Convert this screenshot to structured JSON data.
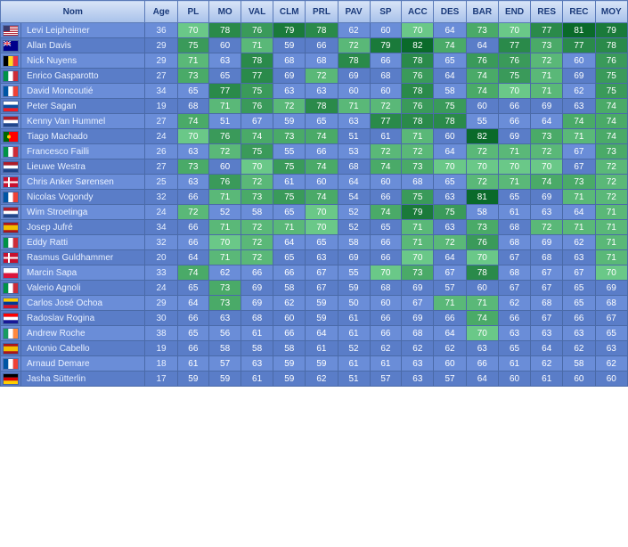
{
  "headers": {
    "nom": "Nom",
    "age": "Age",
    "stats": [
      "PL",
      "MO",
      "VAL",
      "CLM",
      "PRL",
      "PAV",
      "SP",
      "ACC",
      "DES",
      "BAR",
      "END",
      "RES",
      "REC",
      "MOY"
    ]
  },
  "stat_colors": {
    "ranges": [
      {
        "min": 80,
        "bg": "#0a7a3a"
      },
      {
        "min": 78,
        "bg": "#2a9a4a"
      },
      {
        "min": 76,
        "bg": "#3aa85a"
      },
      {
        "min": 74,
        "bg": "#4ab868"
      },
      {
        "min": 72,
        "bg": "#5ac878"
      },
      {
        "min": 70,
        "bg": "#6ad888"
      },
      {
        "min": 68,
        "bg": "#5a8dc8"
      },
      {
        "min": 66,
        "bg": "#5a8dc8"
      },
      {
        "min": 0,
        "bg": "#5a8dc8"
      }
    ],
    "odd_base": "#6a8dd8",
    "even_base": "#5a7dc8"
  },
  "flags": {
    "US": [
      "#b22234",
      "#ffffff",
      "#3c3b6e"
    ],
    "AU": [
      "#00008b",
      "#ff0000",
      "#ffffff"
    ],
    "BE": [
      "#000000",
      "#fdda24",
      "#ef3340"
    ],
    "IT": [
      "#009246",
      "#ffffff",
      "#ce2b37"
    ],
    "FR": [
      "#0055a4",
      "#ffffff",
      "#ef4135"
    ],
    "SK": [
      "#ffffff",
      "#0b4ea2",
      "#ee1c25"
    ],
    "NL": [
      "#ae1c28",
      "#ffffff",
      "#21468b"
    ],
    "PT": [
      "#006600",
      "#ff0000",
      "#ffcc00"
    ],
    "DK": [
      "#c8102e",
      "#ffffff",
      "#c8102e"
    ],
    "ES": [
      "#aa151b",
      "#f1bf00",
      "#aa151b"
    ],
    "PL": [
      "#ffffff",
      "#ffffff",
      "#dc143c"
    ],
    "VE": [
      "#ffcc00",
      "#003893",
      "#cf142b"
    ],
    "HR": [
      "#ff0000",
      "#ffffff",
      "#171796"
    ],
    "IE": [
      "#169b62",
      "#ffffff",
      "#ff883e"
    ],
    "DE": [
      "#000000",
      "#dd0000",
      "#ffce00"
    ]
  },
  "riders": [
    {
      "flag": "US",
      "name": "Levi Leipheimer",
      "age": 36,
      "stats": [
        70,
        78,
        76,
        79,
        78,
        62,
        60,
        70,
        64,
        73,
        70,
        77,
        81,
        79
      ]
    },
    {
      "flag": "AU",
      "name": "Allan Davis",
      "age": 29,
      "stats": [
        75,
        60,
        71,
        59,
        66,
        72,
        79,
        82,
        74,
        64,
        77,
        73,
        77,
        78
      ]
    },
    {
      "flag": "BE",
      "name": "Nick Nuyens",
      "age": 29,
      "stats": [
        71,
        63,
        78,
        68,
        68,
        78,
        66,
        78,
        65,
        76,
        76,
        72,
        60,
        76
      ]
    },
    {
      "flag": "IT",
      "name": "Enrico Gasparotto",
      "age": 27,
      "stats": [
        73,
        65,
        77,
        69,
        72,
        69,
        68,
        76,
        64,
        74,
        75,
        71,
        69,
        75
      ]
    },
    {
      "flag": "FR",
      "name": "David Moncoutié",
      "age": 34,
      "stats": [
        65,
        77,
        75,
        63,
        63,
        60,
        60,
        78,
        58,
        74,
        70,
        71,
        62,
        75
      ]
    },
    {
      "flag": "SK",
      "name": "Peter Sagan",
      "age": 19,
      "stats": [
        68,
        71,
        76,
        72,
        78,
        71,
        72,
        76,
        75,
        60,
        66,
        69,
        63,
        74
      ]
    },
    {
      "flag": "NL",
      "name": "Kenny Van Hummel",
      "age": 27,
      "stats": [
        74,
        51,
        67,
        59,
        65,
        63,
        77,
        78,
        78,
        55,
        66,
        64,
        74,
        74
      ]
    },
    {
      "flag": "PT",
      "name": "Tiago Machado",
      "age": 24,
      "stats": [
        70,
        76,
        74,
        73,
        74,
        51,
        61,
        71,
        60,
        82,
        69,
        73,
        71,
        74
      ]
    },
    {
      "flag": "IT",
      "name": "Francesco Failli",
      "age": 26,
      "stats": [
        63,
        72,
        75,
        55,
        66,
        53,
        72,
        72,
        64,
        72,
        71,
        72,
        67,
        73
      ]
    },
    {
      "flag": "NL",
      "name": "Lieuwe Westra",
      "age": 27,
      "stats": [
        73,
        60,
        70,
        75,
        74,
        68,
        74,
        73,
        70,
        70,
        70,
        70,
        67,
        72
      ]
    },
    {
      "flag": "DK",
      "name": "Chris Anker Sørensen",
      "age": 25,
      "stats": [
        63,
        76,
        72,
        61,
        60,
        64,
        60,
        68,
        65,
        72,
        71,
        74,
        73,
        72
      ]
    },
    {
      "flag": "FR",
      "name": "Nicolas Vogondy",
      "age": 32,
      "stats": [
        66,
        71,
        73,
        75,
        74,
        54,
        66,
        75,
        63,
        81,
        65,
        69,
        71,
        72
      ]
    },
    {
      "flag": "NL",
      "name": "Wim Stroetinga",
      "age": 24,
      "stats": [
        72,
        52,
        58,
        65,
        70,
        52,
        74,
        79,
        75,
        58,
        61,
        63,
        64,
        71
      ]
    },
    {
      "flag": "ES",
      "name": "Josep Jufré",
      "age": 34,
      "stats": [
        66,
        71,
        72,
        71,
        70,
        52,
        65,
        71,
        63,
        73,
        68,
        72,
        71,
        71
      ]
    },
    {
      "flag": "IT",
      "name": "Eddy Ratti",
      "age": 32,
      "stats": [
        66,
        70,
        72,
        64,
        65,
        58,
        66,
        71,
        72,
        76,
        68,
        69,
        62,
        71
      ]
    },
    {
      "flag": "DK",
      "name": "Rasmus Guldhammer",
      "age": 20,
      "stats": [
        64,
        71,
        72,
        65,
        63,
        69,
        66,
        70,
        64,
        70,
        67,
        68,
        63,
        71
      ]
    },
    {
      "flag": "PL",
      "name": "Marcin Sapa",
      "age": 33,
      "stats": [
        74,
        62,
        66,
        66,
        67,
        55,
        70,
        73,
        67,
        78,
        68,
        67,
        67,
        70
      ]
    },
    {
      "flag": "IT",
      "name": "Valerio Agnoli",
      "age": 24,
      "stats": [
        65,
        73,
        69,
        58,
        67,
        59,
        68,
        69,
        57,
        60,
        67,
        67,
        65,
        69
      ]
    },
    {
      "flag": "VE",
      "name": "Carlos José Ochoa",
      "age": 29,
      "stats": [
        64,
        73,
        69,
        62,
        59,
        50,
        60,
        67,
        71,
        71,
        62,
        68,
        65,
        68
      ]
    },
    {
      "flag": "HR",
      "name": "Radoslav Rogina",
      "age": 30,
      "stats": [
        66,
        63,
        68,
        60,
        59,
        61,
        66,
        69,
        66,
        74,
        66,
        67,
        66,
        67
      ]
    },
    {
      "flag": "IE",
      "name": "Andrew Roche",
      "age": 38,
      "stats": [
        65,
        56,
        61,
        66,
        64,
        61,
        66,
        68,
        64,
        70,
        63,
        63,
        63,
        65
      ]
    },
    {
      "flag": "ES",
      "name": "Antonio Cabello",
      "age": 19,
      "stats": [
        66,
        58,
        58,
        58,
        61,
        52,
        62,
        62,
        62,
        63,
        65,
        64,
        62,
        63
      ]
    },
    {
      "flag": "FR",
      "name": "Arnaud Demare",
      "age": 18,
      "stats": [
        61,
        57,
        63,
        59,
        59,
        61,
        61,
        63,
        60,
        66,
        61,
        62,
        58,
        62
      ]
    },
    {
      "flag": "DE",
      "name": "Jasha Sütterlin",
      "age": 17,
      "stats": [
        59,
        59,
        61,
        59,
        62,
        51,
        57,
        63,
        57,
        64,
        60,
        61,
        60,
        60
      ]
    }
  ]
}
